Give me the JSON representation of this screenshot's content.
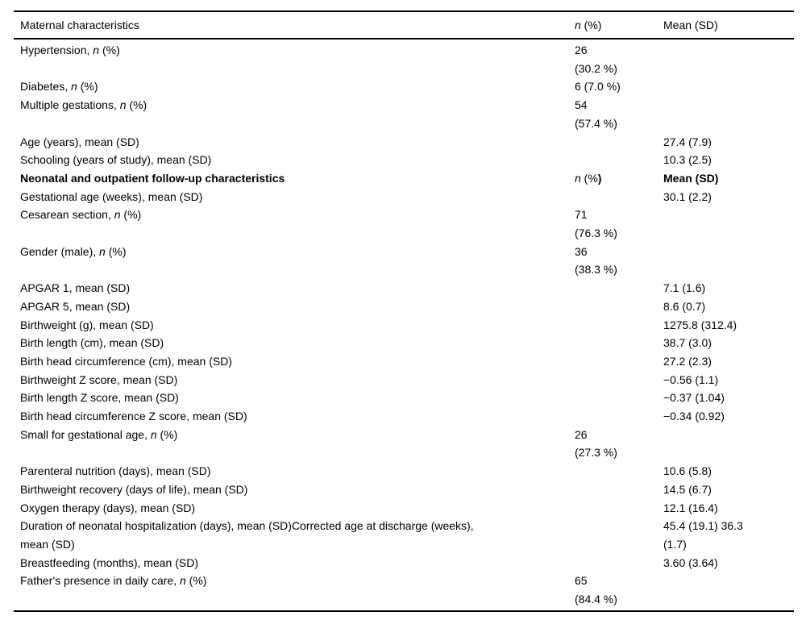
{
  "table": {
    "header": {
      "col1": [
        {
          "t": "Maternal characteristics"
        }
      ],
      "col2": [
        {
          "t": "n",
          "i": true
        },
        {
          "t": " (%)"
        }
      ],
      "col3": [
        {
          "t": "Mean (SD)"
        }
      ]
    },
    "rows": [
      {
        "label": [
          {
            "t": "Hypertension, "
          },
          {
            "t": "n",
            "i": true
          },
          {
            "t": " (%)"
          }
        ],
        "n": [
          {
            "t": "26\n(30.2 %)"
          }
        ],
        "mean": []
      },
      {
        "label": [
          {
            "t": "Diabetes, "
          },
          {
            "t": "n",
            "i": true
          },
          {
            "t": " (%)"
          }
        ],
        "n": [
          {
            "t": "6 (7.0 %)"
          }
        ],
        "mean": []
      },
      {
        "label": [
          {
            "t": "Multiple gestations, "
          },
          {
            "t": "n",
            "i": true
          },
          {
            "t": " (%)"
          }
        ],
        "n": [
          {
            "t": "54\n(57.4 %)"
          }
        ],
        "mean": []
      },
      {
        "label": [
          {
            "t": "Age (years), mean (SD)"
          }
        ],
        "n": [],
        "mean": [
          {
            "t": "27.4 (7.9)"
          }
        ]
      },
      {
        "label": [
          {
            "t": "Schooling (years of study), mean (SD)"
          }
        ],
        "n": [],
        "mean": [
          {
            "t": "10.3 (2.5)"
          }
        ]
      },
      {
        "label": [
          {
            "t": "Neonatal and outpatient follow-up characteristics",
            "b": true
          }
        ],
        "n": [
          {
            "t": "n",
            "i": true
          },
          {
            "t": " (%"
          },
          {
            "t": ")",
            "b": true
          }
        ],
        "mean": [
          {
            "t": "Mean (SD)",
            "b": true
          }
        ]
      },
      {
        "label": [
          {
            "t": "Gestational age (weeks), mean (SD)"
          }
        ],
        "n": [],
        "mean": [
          {
            "t": "30.1 (2.2)"
          }
        ]
      },
      {
        "label": [
          {
            "t": "Cesarean section, "
          },
          {
            "t": "n",
            "i": true
          },
          {
            "t": " (%)"
          }
        ],
        "n": [
          {
            "t": "71\n(76.3 %)"
          }
        ],
        "mean": []
      },
      {
        "label": [
          {
            "t": "Gender (male), "
          },
          {
            "t": "n",
            "i": true
          },
          {
            "t": " (%)"
          }
        ],
        "n": [
          {
            "t": "36\n(38.3 %)"
          }
        ],
        "mean": []
      },
      {
        "label": [
          {
            "t": "APGAR 1, mean (SD)"
          }
        ],
        "n": [],
        "mean": [
          {
            "t": "7.1 (1.6)"
          }
        ]
      },
      {
        "label": [
          {
            "t": "APGAR 5, mean (SD)"
          }
        ],
        "n": [],
        "mean": [
          {
            "t": "8.6 (0.7)"
          }
        ]
      },
      {
        "label": [
          {
            "t": "Birthweight (g), mean (SD)"
          }
        ],
        "n": [],
        "mean": [
          {
            "t": "1275.8 (312.4)"
          }
        ]
      },
      {
        "label": [
          {
            "t": "Birth length (cm), mean (SD)"
          }
        ],
        "n": [],
        "mean": [
          {
            "t": "38.7 (3.0)"
          }
        ]
      },
      {
        "label": [
          {
            "t": "Birth head circumference (cm), mean (SD)"
          }
        ],
        "n": [],
        "mean": [
          {
            "t": "27.2 (2.3)"
          }
        ]
      },
      {
        "label": [
          {
            "t": "Birthweight Z score, mean (SD)"
          }
        ],
        "n": [],
        "mean": [
          {
            "t": "−0.56 (1.1)"
          }
        ]
      },
      {
        "label": [
          {
            "t": "Birth length Z score, mean (SD)"
          }
        ],
        "n": [],
        "mean": [
          {
            "t": "−0.37 (1.04)"
          }
        ]
      },
      {
        "label": [
          {
            "t": "Birth head circumference Z score, mean (SD)"
          }
        ],
        "n": [],
        "mean": [
          {
            "t": "−0.34 (0.92)"
          }
        ]
      },
      {
        "label": [
          {
            "t": "Small for gestational age, "
          },
          {
            "t": "n",
            "i": true
          },
          {
            "t": " (%)"
          }
        ],
        "n": [
          {
            "t": "26\n(27.3 %)"
          }
        ],
        "mean": []
      },
      {
        "label": [
          {
            "t": "Parenteral nutrition (days), mean (SD)"
          }
        ],
        "n": [],
        "mean": [
          {
            "t": "10.6 (5.8)"
          }
        ]
      },
      {
        "label": [
          {
            "t": "Birthweight recovery (days of life), mean (SD)"
          }
        ],
        "n": [],
        "mean": [
          {
            "t": "14.5 (6.7)"
          }
        ]
      },
      {
        "label": [
          {
            "t": "Oxygen therapy (days), mean (SD)"
          }
        ],
        "n": [],
        "mean": [
          {
            "t": "12.1 (16.4)"
          }
        ]
      },
      {
        "label": [
          {
            "t": "Duration of neonatal hospitalization (days), mean (SD)Corrected age at discharge (weeks),\nmean (SD)"
          }
        ],
        "n": [],
        "mean": [
          {
            "t": "45.4 (19.1) 36.3\n(1.7)"
          }
        ]
      },
      {
        "label": [
          {
            "t": "Breastfeeding (months), mean (SD)"
          }
        ],
        "n": [],
        "mean": [
          {
            "t": "3.60 (3.64)"
          }
        ]
      },
      {
        "label": [
          {
            "t": "Father's presence in daily care, "
          },
          {
            "t": "n",
            "i": true
          },
          {
            "t": " (%)"
          }
        ],
        "n": [
          {
            "t": "65\n(84.4 %)"
          }
        ],
        "mean": []
      }
    ]
  }
}
